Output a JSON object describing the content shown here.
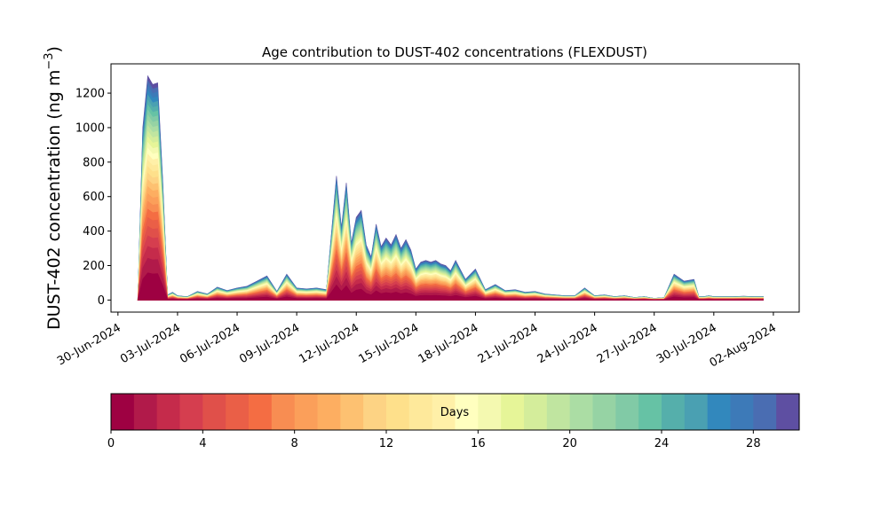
{
  "chart_data": {
    "type": "area",
    "title": "Age contribution to DUST-402 concentrations (FLEXDUST)",
    "ylabel": "DUST-402 concentration (ng m",
    "ylabel_sup": "−3",
    "ylabel_close": ")",
    "xlabel": "",
    "ylim": [
      -70,
      1370
    ],
    "yticks": [
      0,
      200,
      400,
      600,
      800,
      1000,
      1200
    ],
    "x_range_days_from_first_tick": [
      -0.35,
      34.3
    ],
    "xticks": [
      "30-Jun-2024",
      "03-Jul-2024",
      "06-Jul-2024",
      "09-Jul-2024",
      "12-Jul-2024",
      "15-Jul-2024",
      "18-Jul-2024",
      "21-Jul-2024",
      "24-Jul-2024",
      "27-Jul-2024",
      "30-Jul-2024",
      "02-Aug-2024"
    ],
    "tick_step_days": 3,
    "grid": false,
    "legend": "none",
    "series_colormap": "Spectral",
    "total_concentration": {
      "x": [
        "2024-07-01T00:00",
        "2024-07-01T06:00",
        "2024-07-01T12:00",
        "2024-07-01T18:00",
        "2024-07-02T00:00",
        "2024-07-02T06:00",
        "2024-07-02T12:00",
        "2024-07-02T18:00",
        "2024-07-03T00:00",
        "2024-07-03T06:00",
        "2024-07-03T12:00",
        "2024-07-04T00:00",
        "2024-07-04T12:00",
        "2024-07-05T00:00",
        "2024-07-05T12:00",
        "2024-07-06T00:00",
        "2024-07-06T12:00",
        "2024-07-07T00:00",
        "2024-07-07T12:00",
        "2024-07-08T00:00",
        "2024-07-08T12:00",
        "2024-07-09T00:00",
        "2024-07-09T12:00",
        "2024-07-10T00:00",
        "2024-07-10T12:00",
        "2024-07-11T00:00",
        "2024-07-11T06:00",
        "2024-07-11T12:00",
        "2024-07-11T18:00",
        "2024-07-12T00:00",
        "2024-07-12T06:00",
        "2024-07-12T12:00",
        "2024-07-12T18:00",
        "2024-07-13T00:00",
        "2024-07-13T06:00",
        "2024-07-13T12:00",
        "2024-07-13T18:00",
        "2024-07-14T00:00",
        "2024-07-14T06:00",
        "2024-07-14T12:00",
        "2024-07-14T18:00",
        "2024-07-15T00:00",
        "2024-07-15T06:00",
        "2024-07-15T12:00",
        "2024-07-15T18:00",
        "2024-07-16T00:00",
        "2024-07-16T06:00",
        "2024-07-16T12:00",
        "2024-07-16T18:00",
        "2024-07-17T00:00",
        "2024-07-17T12:00",
        "2024-07-18T00:00",
        "2024-07-18T12:00",
        "2024-07-19T00:00",
        "2024-07-19T12:00",
        "2024-07-20T00:00",
        "2024-07-20T12:00",
        "2024-07-21T00:00",
        "2024-07-21T12:00",
        "2024-07-22T00:00",
        "2024-07-22T12:00",
        "2024-07-23T00:00",
        "2024-07-23T12:00",
        "2024-07-24T00:00",
        "2024-07-24T12:00",
        "2024-07-25T00:00",
        "2024-07-25T12:00",
        "2024-07-26T00:00",
        "2024-07-26T12:00",
        "2024-07-27T00:00",
        "2024-07-27T12:00",
        "2024-07-28T00:00",
        "2024-07-28T12:00",
        "2024-07-29T00:00",
        "2024-07-29T06:00",
        "2024-07-29T12:00",
        "2024-07-29T18:00",
        "2024-07-30T00:00",
        "2024-07-30T12:00",
        "2024-07-31T00:00",
        "2024-07-31T12:00",
        "2024-08-01T00:00",
        "2024-08-01T12:00"
      ],
      "values": [
        0,
        1000,
        1300,
        1250,
        1260,
        700,
        30,
        45,
        25,
        22,
        20,
        50,
        35,
        75,
        55,
        70,
        80,
        110,
        140,
        50,
        150,
        70,
        65,
        70,
        60,
        720,
        420,
        680,
        330,
        480,
        520,
        320,
        250,
        440,
        310,
        360,
        320,
        380,
        300,
        350,
        290,
        180,
        220,
        230,
        220,
        230,
        210,
        200,
        170,
        230,
        120,
        180,
        60,
        90,
        55,
        60,
        45,
        50,
        35,
        30,
        25,
        25,
        70,
        25,
        30,
        20,
        25,
        15,
        20,
        10,
        15,
        150,
        110,
        120,
        20,
        20,
        25,
        20,
        20,
        20,
        22,
        20,
        20
      ]
    },
    "colorbar": {
      "label": "Days",
      "range": [
        0,
        30
      ],
      "bins": 30,
      "ticks": [
        0,
        4,
        8,
        12,
        16,
        20,
        24,
        28
      ],
      "colors": [
        "#9e0142",
        "#b11a4a",
        "#c52b4b",
        "#d53e4f",
        "#e0504a",
        "#ea5f47",
        "#f46d43",
        "#f88d52",
        "#fb9f5a",
        "#fdae61",
        "#fdc171",
        "#fdd384",
        "#fee08b",
        "#fee99b",
        "#fff0a8",
        "#ffffbf",
        "#f4f9b0",
        "#e6f598",
        "#d4ed9b",
        "#c0e5a0",
        "#abdda4",
        "#96d3a4",
        "#81caa6",
        "#66c2a5",
        "#55afab",
        "#4aa0b2",
        "#3288bd",
        "#3d7ab8",
        "#4a6db2",
        "#5e4fa2"
      ]
    }
  }
}
